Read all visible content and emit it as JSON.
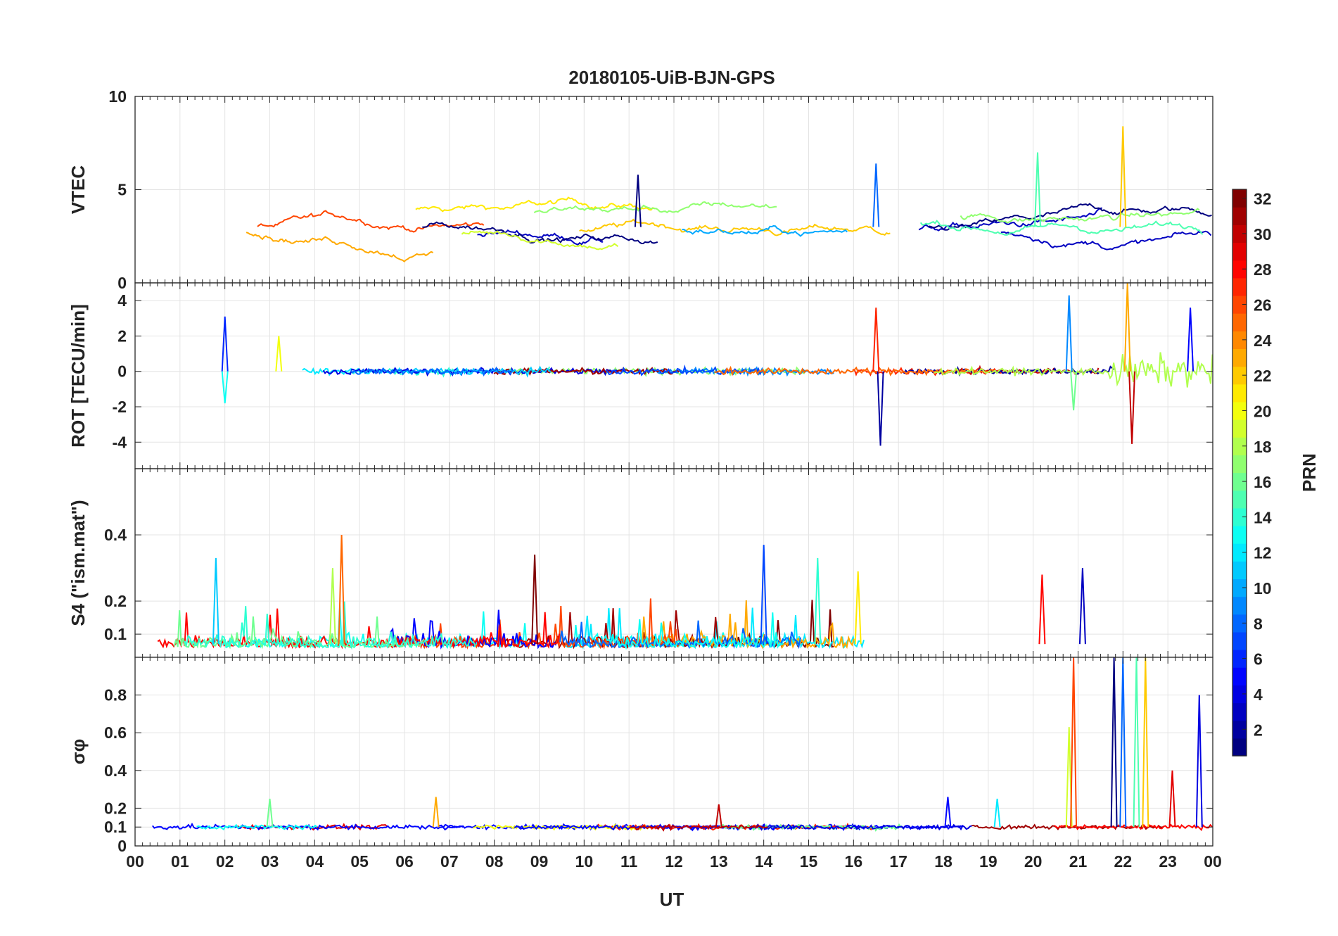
{
  "chart_data": {
    "type": "line",
    "title": "20180105-UiB-BJN-GPS",
    "xlabel": "UT",
    "x_tick_labels": [
      "00",
      "01",
      "02",
      "03",
      "04",
      "05",
      "06",
      "07",
      "08",
      "09",
      "10",
      "11",
      "12",
      "13",
      "14",
      "15",
      "16",
      "17",
      "18",
      "19",
      "20",
      "21",
      "22",
      "23",
      "00"
    ],
    "xlim_hours": [
      0,
      24
    ],
    "grid": true,
    "panels": [
      {
        "ylabel": "VTEC",
        "ylim": [
          0,
          10
        ],
        "yticks": [
          0,
          5,
          10
        ],
        "ytick_labels": [
          "0",
          "5",
          "10"
        ],
        "description_values": "TEC traces per PRN ~1.5–4.5 TECU most of day; peaks ~6 near 11 UT, ~6.5 near 16.5 UT, ~7 near 20 UT, ~8.5 near 22 UT"
      },
      {
        "ylabel": "ROT [TECU/min]",
        "ylim": [
          -5.5,
          5
        ],
        "yticks": [
          -4,
          -2,
          0,
          2,
          4
        ],
        "ytick_labels": [
          "-4",
          "-2",
          "0",
          "2",
          "4"
        ],
        "description_values": "ROT around 0 with spikes: ~3 at 02 UT, ~3.6/-4.2 at 16.5 UT, ~4.3 at 20.8 UT, up to ~5/-4 at 22 UT"
      },
      {
        "ylabel": "S4 (\"ism.mat\")",
        "ylim": [
          0.03,
          0.6
        ],
        "yticks": [
          0.1,
          0.2,
          0.4
        ],
        "ytick_labels": [
          "0.1",
          "0.2",
          "0.4"
        ],
        "description_values": "S4 mostly 0.05–0.2, max ~0.4 at 4.5 UT and ~0.37 at 14 UT"
      },
      {
        "ylabel": "σφ",
        "ylim": [
          0,
          1
        ],
        "yticks": [
          0,
          0.1,
          0.2,
          0.4,
          0.6,
          0.8
        ],
        "ytick_labels": [
          "0",
          "0.1",
          "0.2",
          "0.4",
          "0.6",
          "0.8"
        ],
        "description_values": "sigma phi ~0.1 baseline; spikes to 1+ between 20.8 and 22.5 UT, ~0.8 at 23.8 UT"
      }
    ],
    "spike_events": {
      "vtec": [
        [
          11.2,
          5.8
        ],
        [
          16.5,
          6.4
        ],
        [
          20.1,
          7.0
        ],
        [
          22.0,
          8.4
        ]
      ],
      "rot": [
        [
          2.0,
          3.1
        ],
        [
          2.0,
          -1.8
        ],
        [
          3.2,
          2.0
        ],
        [
          16.5,
          3.6
        ],
        [
          16.6,
          -4.2
        ],
        [
          20.8,
          4.3
        ],
        [
          20.9,
          -2.2
        ],
        [
          22.1,
          5.0
        ],
        [
          22.2,
          -4.1
        ],
        [
          23.5,
          3.6
        ]
      ],
      "s4": [
        [
          1.8,
          0.33
        ],
        [
          4.4,
          0.3
        ],
        [
          4.6,
          0.4
        ],
        [
          8.9,
          0.34
        ],
        [
          14.0,
          0.37
        ],
        [
          15.2,
          0.33
        ],
        [
          16.1,
          0.29
        ],
        [
          20.2,
          0.28
        ],
        [
          21.1,
          0.3
        ]
      ],
      "sigma_phi": [
        [
          3.0,
          0.25
        ],
        [
          6.7,
          0.26
        ],
        [
          13.0,
          0.22
        ],
        [
          18.1,
          0.26
        ],
        [
          19.2,
          0.25
        ],
        [
          20.8,
          0.63
        ],
        [
          20.9,
          1.0
        ],
        [
          21.8,
          1.0
        ],
        [
          22.0,
          1.0
        ],
        [
          22.3,
          1.0
        ],
        [
          22.5,
          1.0
        ],
        [
          23.1,
          0.4
        ],
        [
          23.7,
          0.8
        ]
      ]
    },
    "colorbar": {
      "label": "PRN",
      "range": [
        1,
        32
      ],
      "ticks": [
        2,
        4,
        6,
        8,
        10,
        12,
        14,
        16,
        18,
        20,
        22,
        24,
        26,
        28,
        30,
        32
      ],
      "colormap": "jet"
    }
  }
}
